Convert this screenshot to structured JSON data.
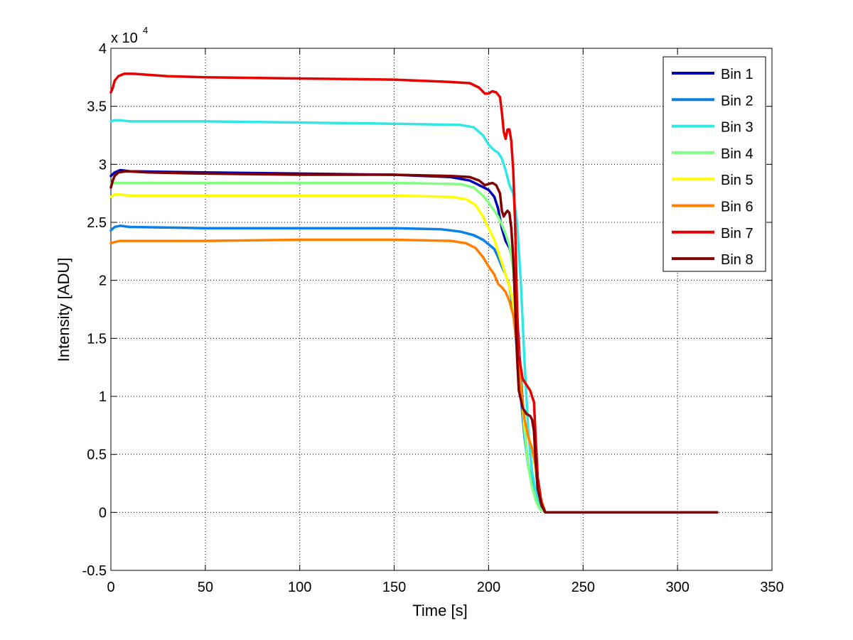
{
  "chart_data": {
    "type": "line",
    "xlabel": "Time [s]",
    "ylabel": "Intensity [ADU]",
    "y_exponent_label": "x 10",
    "y_exponent_power": "4",
    "xlim": [
      0,
      350
    ],
    "ylim": [
      -0.5,
      4
    ],
    "y_scale_note": "values in units of 10^4 ADU",
    "grid": true,
    "legend_position": "top-right",
    "x_ticks": [
      0,
      50,
      100,
      150,
      200,
      250,
      300,
      350
    ],
    "x_tick_labels": [
      "0",
      "50",
      "100",
      "150",
      "200",
      "250",
      "300",
      "350"
    ],
    "y_ticks": [
      -0.5,
      0,
      0.5,
      1,
      1.5,
      2,
      2.5,
      3,
      3.5,
      4
    ],
    "y_tick_labels": [
      "-0.5",
      "0",
      "0.5",
      "1",
      "1.5",
      "2",
      "2.5",
      "3",
      "3.5",
      "4"
    ],
    "series": [
      {
        "name": "Bin 1",
        "color": "#0000b3",
        "points": [
          [
            0,
            2.9
          ],
          [
            2,
            2.93
          ],
          [
            5,
            2.95
          ],
          [
            10,
            2.94
          ],
          [
            50,
            2.93
          ],
          [
            100,
            2.92
          ],
          [
            150,
            2.91
          ],
          [
            180,
            2.89
          ],
          [
            190,
            2.86
          ],
          [
            195,
            2.82
          ],
          [
            200,
            2.78
          ],
          [
            203,
            2.72
          ],
          [
            205,
            2.62
          ],
          [
            207,
            2.45
          ],
          [
            209,
            2.34
          ],
          [
            211,
            2.28
          ],
          [
            213,
            2.15
          ],
          [
            215,
            1.7
          ],
          [
            217,
            1.2
          ],
          [
            219,
            0.7
          ],
          [
            221,
            0.4
          ],
          [
            223,
            0.25
          ],
          [
            225,
            0.12
          ],
          [
            227,
            0.04
          ],
          [
            230,
            0.0
          ],
          [
            250,
            0.0
          ],
          [
            300,
            0.0
          ],
          [
            321,
            0.0
          ]
        ]
      },
      {
        "name": "Bin 2",
        "color": "#0a80e8",
        "points": [
          [
            0,
            2.43
          ],
          [
            2,
            2.46
          ],
          [
            5,
            2.47
          ],
          [
            10,
            2.46
          ],
          [
            50,
            2.45
          ],
          [
            100,
            2.45
          ],
          [
            150,
            2.45
          ],
          [
            175,
            2.44
          ],
          [
            185,
            2.42
          ],
          [
            192,
            2.39
          ],
          [
            197,
            2.35
          ],
          [
            200,
            2.31
          ],
          [
            203,
            2.27
          ],
          [
            205,
            2.2
          ],
          [
            207,
            2.12
          ],
          [
            209,
            2.05
          ],
          [
            211,
            1.95
          ],
          [
            213,
            1.75
          ],
          [
            215,
            1.4
          ],
          [
            217,
            1.0
          ],
          [
            219,
            0.65
          ],
          [
            221,
            0.4
          ],
          [
            223,
            0.25
          ],
          [
            225,
            0.12
          ],
          [
            227,
            0.04
          ],
          [
            230,
            0.0
          ],
          [
            250,
            0.0
          ],
          [
            300,
            0.0
          ],
          [
            321,
            0.0
          ]
        ]
      },
      {
        "name": "Bin 3",
        "color": "#33e6e6",
        "points": [
          [
            0,
            3.37
          ],
          [
            2,
            3.38
          ],
          [
            5,
            3.38
          ],
          [
            10,
            3.37
          ],
          [
            50,
            3.37
          ],
          [
            100,
            3.36
          ],
          [
            150,
            3.35
          ],
          [
            185,
            3.34
          ],
          [
            192,
            3.32
          ],
          [
            197,
            3.25
          ],
          [
            200,
            3.17
          ],
          [
            203,
            3.12
          ],
          [
            205,
            3.1
          ],
          [
            207,
            3.05
          ],
          [
            209,
            2.95
          ],
          [
            211,
            2.82
          ],
          [
            213,
            2.75
          ],
          [
            215,
            2.5
          ],
          [
            217,
            2.0
          ],
          [
            219,
            1.3
          ],
          [
            221,
            0.7
          ],
          [
            223,
            0.35
          ],
          [
            225,
            0.18
          ],
          [
            227,
            0.06
          ],
          [
            230,
            0.0
          ],
          [
            250,
            0.0
          ],
          [
            300,
            0.0
          ],
          [
            321,
            0.0
          ]
        ]
      },
      {
        "name": "Bin 4",
        "color": "#80ff80",
        "points": [
          [
            0,
            2.84
          ],
          [
            2,
            2.84
          ],
          [
            5,
            2.84
          ],
          [
            10,
            2.84
          ],
          [
            50,
            2.84
          ],
          [
            100,
            2.84
          ],
          [
            150,
            2.84
          ],
          [
            185,
            2.83
          ],
          [
            192,
            2.8
          ],
          [
            197,
            2.73
          ],
          [
            200,
            2.67
          ],
          [
            203,
            2.6
          ],
          [
            205,
            2.55
          ],
          [
            207,
            2.48
          ],
          [
            209,
            2.4
          ],
          [
            211,
            2.3
          ],
          [
            213,
            2.1
          ],
          [
            215,
            1.65
          ],
          [
            217,
            1.15
          ],
          [
            219,
            0.7
          ],
          [
            221,
            0.4
          ],
          [
            223,
            0.22
          ],
          [
            225,
            0.1
          ],
          [
            227,
            0.03
          ],
          [
            230,
            0.0
          ],
          [
            250,
            0.0
          ],
          [
            300,
            0.0
          ],
          [
            321,
            0.0
          ]
        ]
      },
      {
        "name": "Bin 5",
        "color": "#ffff00",
        "points": [
          [
            0,
            2.72
          ],
          [
            2,
            2.74
          ],
          [
            5,
            2.74
          ],
          [
            10,
            2.73
          ],
          [
            50,
            2.73
          ],
          [
            100,
            2.73
          ],
          [
            150,
            2.73
          ],
          [
            180,
            2.72
          ],
          [
            188,
            2.7
          ],
          [
            193,
            2.65
          ],
          [
            197,
            2.55
          ],
          [
            200,
            2.45
          ],
          [
            203,
            2.35
          ],
          [
            205,
            2.25
          ],
          [
            207,
            2.15
          ],
          [
            209,
            2.05
          ],
          [
            211,
            1.95
          ],
          [
            213,
            1.8
          ],
          [
            215,
            1.45
          ],
          [
            217,
            1.05
          ],
          [
            219,
            0.75
          ],
          [
            221,
            0.65
          ],
          [
            223,
            0.55
          ],
          [
            225,
            0.35
          ],
          [
            227,
            0.12
          ],
          [
            230,
            0.0
          ],
          [
            250,
            0.0
          ],
          [
            300,
            0.0
          ],
          [
            321,
            0.0
          ]
        ]
      },
      {
        "name": "Bin 6",
        "color": "#ff8000",
        "points": [
          [
            0,
            2.32
          ],
          [
            2,
            2.33
          ],
          [
            5,
            2.34
          ],
          [
            10,
            2.34
          ],
          [
            50,
            2.34
          ],
          [
            100,
            2.35
          ],
          [
            150,
            2.35
          ],
          [
            180,
            2.34
          ],
          [
            188,
            2.32
          ],
          [
            193,
            2.28
          ],
          [
            197,
            2.2
          ],
          [
            200,
            2.12
          ],
          [
            203,
            2.05
          ],
          [
            205,
            1.97
          ],
          [
            207,
            1.94
          ],
          [
            209,
            1.9
          ],
          [
            211,
            1.82
          ],
          [
            213,
            1.7
          ],
          [
            215,
            1.45
          ],
          [
            217,
            1.1
          ],
          [
            219,
            0.8
          ],
          [
            221,
            0.65
          ],
          [
            223,
            0.55
          ],
          [
            225,
            0.4
          ],
          [
            227,
            0.15
          ],
          [
            230,
            0.0
          ],
          [
            250,
            0.0
          ],
          [
            300,
            0.0
          ],
          [
            321,
            0.0
          ]
        ]
      },
      {
        "name": "Bin 7",
        "color": "#e60000",
        "points": [
          [
            0,
            3.62
          ],
          [
            1,
            3.66
          ],
          [
            2,
            3.72
          ],
          [
            4,
            3.76
          ],
          [
            7,
            3.78
          ],
          [
            12,
            3.78
          ],
          [
            30,
            3.76
          ],
          [
            50,
            3.75
          ],
          [
            100,
            3.74
          ],
          [
            150,
            3.73
          ],
          [
            180,
            3.71
          ],
          [
            190,
            3.7
          ],
          [
            195,
            3.66
          ],
          [
            198,
            3.61
          ],
          [
            200,
            3.61
          ],
          [
            202,
            3.63
          ],
          [
            204,
            3.62
          ],
          [
            206,
            3.58
          ],
          [
            207,
            3.45
          ],
          [
            208,
            3.28
          ],
          [
            209,
            3.22
          ],
          [
            210,
            3.3
          ],
          [
            211,
            3.3
          ],
          [
            212,
            3.2
          ],
          [
            213,
            2.95
          ],
          [
            214,
            2.5
          ],
          [
            215,
            1.8
          ],
          [
            216,
            1.35
          ],
          [
            218,
            1.15
          ],
          [
            220,
            1.1
          ],
          [
            222,
            1.05
          ],
          [
            223,
            1.0
          ],
          [
            224,
            0.95
          ],
          [
            225,
            0.6
          ],
          [
            226,
            0.3
          ],
          [
            228,
            0.08
          ],
          [
            230,
            0.0
          ],
          [
            250,
            0.0
          ],
          [
            300,
            0.0
          ],
          [
            321,
            0.0
          ]
        ]
      },
      {
        "name": "Bin 8",
        "color": "#800000",
        "points": [
          [
            0,
            2.8
          ],
          [
            1,
            2.86
          ],
          [
            2,
            2.9
          ],
          [
            4,
            2.93
          ],
          [
            8,
            2.94
          ],
          [
            20,
            2.93
          ],
          [
            50,
            2.92
          ],
          [
            100,
            2.91
          ],
          [
            150,
            2.91
          ],
          [
            180,
            2.9
          ],
          [
            190,
            2.89
          ],
          [
            195,
            2.86
          ],
          [
            198,
            2.82
          ],
          [
            200,
            2.83
          ],
          [
            202,
            2.84
          ],
          [
            204,
            2.82
          ],
          [
            206,
            2.75
          ],
          [
            207,
            2.6
          ],
          [
            208,
            2.55
          ],
          [
            209,
            2.58
          ],
          [
            210,
            2.6
          ],
          [
            211,
            2.58
          ],
          [
            212,
            2.45
          ],
          [
            213,
            2.2
          ],
          [
            214,
            1.8
          ],
          [
            215,
            1.35
          ],
          [
            216,
            1.05
          ],
          [
            218,
            0.9
          ],
          [
            220,
            0.85
          ],
          [
            222,
            0.83
          ],
          [
            223,
            0.8
          ],
          [
            224,
            0.7
          ],
          [
            225,
            0.4
          ],
          [
            226,
            0.2
          ],
          [
            228,
            0.06
          ],
          [
            230,
            0.0
          ],
          [
            250,
            0.0
          ],
          [
            300,
            0.0
          ],
          [
            321,
            0.0
          ]
        ]
      }
    ]
  }
}
